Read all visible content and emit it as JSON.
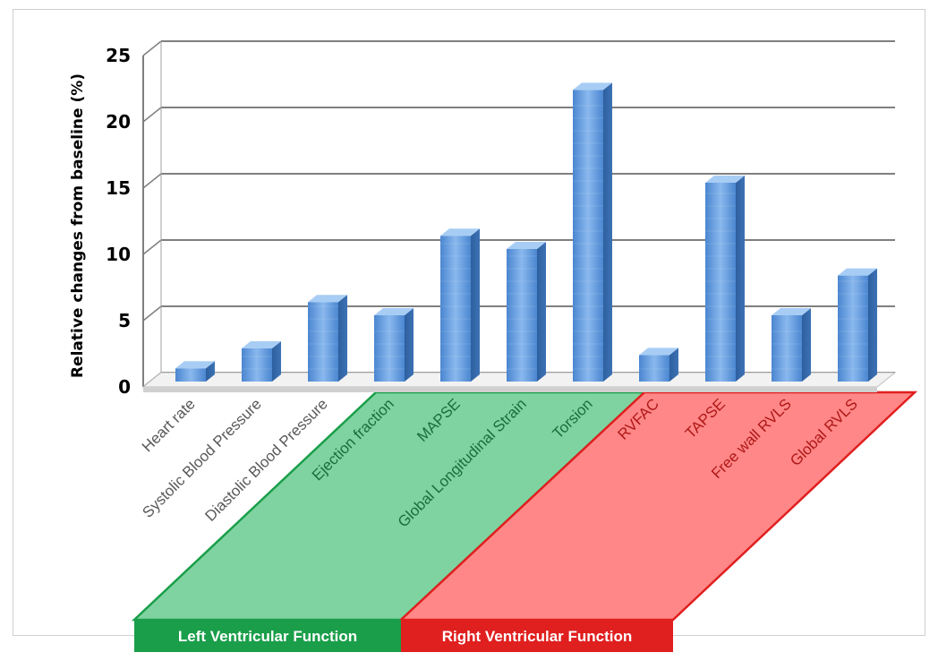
{
  "chart_data": {
    "type": "bar",
    "ylabel": "Relative changes from baseline (%)",
    "ylim": [
      0,
      25
    ],
    "yticks": [
      0,
      5,
      10,
      15,
      20,
      25
    ],
    "grid": true,
    "categories": [
      "Heart rate",
      "Systolic Blood Pressure",
      "Diastolic Blood Pressure",
      "Ejection fraction",
      "MAPSE",
      "Global Longitudinal Strain",
      "Torsion",
      "RVFAC",
      "TAPSE",
      "Free wall RVLS",
      "Global RVLS"
    ],
    "values": [
      1.0,
      2.5,
      6.0,
      5.0,
      11.0,
      10.0,
      22.0,
      2.0,
      15.0,
      5.0,
      8.0
    ],
    "bar_color": "#5b9bd5",
    "groups": [
      {
        "label": "Left Ventricular Function",
        "fill": "#7fd3a0",
        "stroke": "#1a9e4a",
        "label_bg": "#1a9e4a",
        "text_color": "#1b6e3a",
        "categories": [
          3,
          4,
          5,
          6
        ]
      },
      {
        "label": "Right Ventricular Function",
        "fill": "#ff8787",
        "stroke": "#e01f1f",
        "label_bg": "#e01f1f",
        "text_color": "#b01818",
        "categories": [
          7,
          8,
          9,
          10
        ]
      }
    ],
    "neutral_text_color": "#595959"
  }
}
